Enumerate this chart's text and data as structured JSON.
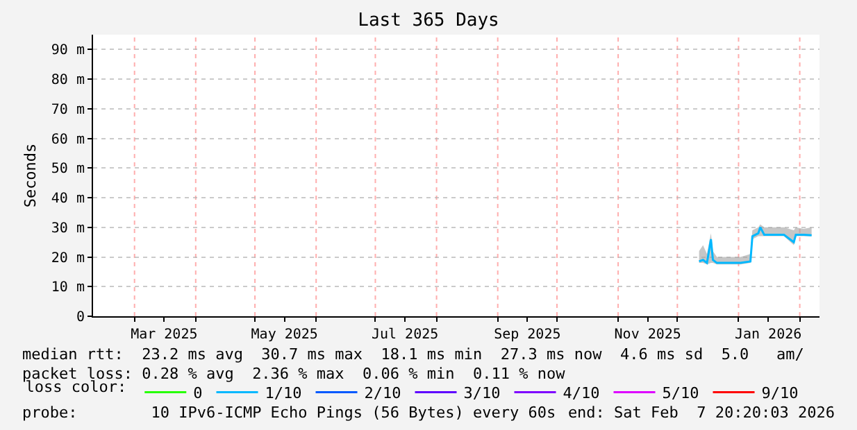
{
  "chart_data": {
    "type": "line",
    "title": "Last 365 Days",
    "ylabel": "Seconds",
    "x": [
      "2025-12-12",
      "2025-12-14",
      "2025-12-16",
      "2025-12-18",
      "2025-12-19",
      "2025-12-21",
      "2025-12-25",
      "2025-12-29",
      "2026-01-02",
      "2026-01-07",
      "2026-01-08",
      "2026-01-11",
      "2026-01-12",
      "2026-01-14",
      "2026-01-19",
      "2026-01-24",
      "2026-01-29",
      "2026-01-30",
      "2026-02-03",
      "2026-02-07"
    ],
    "series": [
      {
        "name": "0",
        "color": "#26ff00",
        "values": [
          null,
          null,
          null,
          null,
          null,
          null,
          null,
          null,
          null,
          null,
          null,
          null,
          null,
          null,
          null,
          null,
          null,
          null,
          null,
          null
        ]
      },
      {
        "name": "1/10",
        "color": "#00b8ff",
        "values": [
          18.5,
          19,
          18,
          26,
          19,
          18,
          18,
          18,
          18,
          18.5,
          27,
          28,
          30,
          27.5,
          27.5,
          27.5,
          25,
          27.5,
          27.5,
          27.3
        ],
        "lower": [
          18,
          18,
          17.5,
          18,
          18,
          17.5,
          17.5,
          17.5,
          17.5,
          18,
          26,
          27,
          27,
          27,
          27,
          27,
          24,
          27,
          27,
          27
        ],
        "upper": [
          22,
          24,
          21,
          28,
          22,
          20,
          20,
          20,
          20,
          21,
          29,
          30,
          31,
          30,
          30,
          30,
          29,
          30,
          29.5,
          30
        ]
      },
      {
        "name": "2/10",
        "color": "#0059ff",
        "values": [
          null,
          null,
          null,
          null,
          null,
          null,
          null,
          null,
          null,
          null,
          null,
          null,
          null,
          null,
          null,
          null,
          null,
          null,
          null,
          null
        ]
      },
      {
        "name": "3/10",
        "color": "#5e00ff",
        "values": [
          null,
          null,
          null,
          null,
          null,
          null,
          null,
          null,
          null,
          null,
          null,
          null,
          null,
          null,
          null,
          null,
          null,
          null,
          null,
          null
        ]
      },
      {
        "name": "4/10",
        "color": "#7e00ff",
        "values": [
          null,
          null,
          null,
          null,
          null,
          null,
          null,
          null,
          null,
          null,
          null,
          null,
          null,
          null,
          null,
          null,
          null,
          null,
          null,
          null
        ]
      },
      {
        "name": "5/10",
        "color": "#dd00ff",
        "values": [
          null,
          null,
          null,
          null,
          null,
          null,
          null,
          null,
          null,
          null,
          null,
          null,
          null,
          null,
          null,
          null,
          null,
          null,
          null,
          null
        ]
      },
      {
        "name": "9/10",
        "color": "#ff0000",
        "values": [
          null,
          null,
          null,
          null,
          null,
          null,
          null,
          null,
          null,
          null,
          null,
          null,
          null,
          null,
          null,
          null,
          null,
          null,
          null,
          null
        ]
      }
    ],
    "legend_title": "loss color:",
    "legend": "bottom left",
    "xlim": [
      "2025-02-08",
      "2026-02-11"
    ],
    "xticks": [
      {
        "value": "2025-03-01",
        "label": null
      },
      {
        "value": "2025-03-16",
        "label": "Mar 2025"
      },
      {
        "value": "2025-04-01",
        "label": null
      },
      {
        "value": "2025-05-01",
        "label": null
      },
      {
        "value": "2025-05-16",
        "label": "May 2025"
      },
      {
        "value": "2025-06-01",
        "label": null
      },
      {
        "value": "2025-07-01",
        "label": null
      },
      {
        "value": "2025-07-16",
        "label": "Jul 2025"
      },
      {
        "value": "2025-08-01",
        "label": null
      },
      {
        "value": "2025-09-01",
        "label": null
      },
      {
        "value": "2025-09-16",
        "label": "Sep 2025"
      },
      {
        "value": "2025-10-01",
        "label": null
      },
      {
        "value": "2025-11-01",
        "label": null
      },
      {
        "value": "2025-11-16",
        "label": "Nov 2025"
      },
      {
        "value": "2025-12-01",
        "label": null
      },
      {
        "value": "2026-01-01",
        "label": null
      },
      {
        "value": "2026-01-16",
        "label": "Jan 2026"
      },
      {
        "value": "2026-02-01",
        "label": null
      }
    ],
    "ylim": [
      0,
      95
    ],
    "yticks": [
      0,
      {
        "value": 10,
        "label": "10 m"
      },
      {
        "value": 20,
        "label": "20 m"
      },
      {
        "value": 30,
        "label": "30 m"
      },
      {
        "value": 40,
        "label": "40 m"
      },
      {
        "value": 50,
        "label": "50 m"
      },
      {
        "value": 60,
        "label": "60 m"
      },
      {
        "value": 70,
        "label": "70 m"
      },
      {
        "value": 80,
        "label": "80 m"
      },
      {
        "value": 90,
        "label": "90 m"
      }
    ],
    "grid": true,
    "marker": "none",
    "line_style": "solid",
    "annotations": [
      "median rtt:  23.2 ms avg  30.7 ms max  18.1 ms min  27.3 ms now  4.6 ms sd  5.0   am/",
      "packet loss: 0.28 % avg  2.36 % max  0.06 % min  0.11 % now",
      "probe:        10 IPv6-ICMP Echo Pings (56 Bytes) every 60s",
      "end: Sat Feb  7 20:20:03 2026"
    ]
  }
}
